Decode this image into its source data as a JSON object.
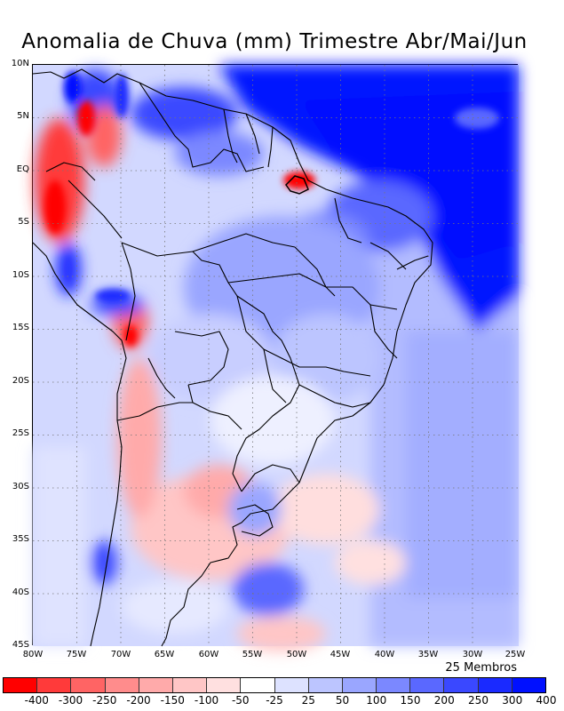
{
  "title": "Anomalia de Chuva (mm) Trimestre Abr/Mai/Jun",
  "members_label": "25 Membros",
  "y_ticks": [
    "10N",
    "5N",
    "EQ",
    "5S",
    "10S",
    "15S",
    "20S",
    "25S",
    "30S",
    "35S",
    "40S",
    "45S"
  ],
  "x_ticks": [
    "80W",
    "75W",
    "70W",
    "65W",
    "60W",
    "55W",
    "50W",
    "45W",
    "40W",
    "35W",
    "30W",
    "25W"
  ],
  "colorbar": {
    "colors": [
      "#ff0000",
      "#ff3a3a",
      "#ff6464",
      "#ff8c8c",
      "#ffaaaa",
      "#ffc6c6",
      "#ffe0e0",
      "#ffffff",
      "#dde2ff",
      "#bcc5ff",
      "#9aa6ff",
      "#7b88ff",
      "#5a68ff",
      "#3a48ff",
      "#1a2aff",
      "#0010ff"
    ],
    "labels": [
      "-400",
      "-300",
      "-250",
      "-200",
      "-150",
      "-100",
      "-50",
      "-25",
      "25",
      "50",
      "100",
      "150",
      "200",
      "250",
      "300",
      "400"
    ]
  },
  "colors": {
    "ocean_atlantic": "#bcc5ff",
    "strong_positive": "#0010ff",
    "moderate_positive": "#7b88ff",
    "weak_positive": "#dde2ff",
    "weak_negative": "#ffc6c6",
    "strong_negative": "#ff0000",
    "border": "#000000"
  }
}
